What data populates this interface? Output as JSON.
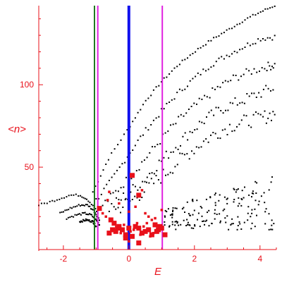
{
  "chart_data": {
    "type": "scatter",
    "title": "",
    "xlabel": "E",
    "ylabel": "<n>",
    "xlim": [
      -2.75,
      4.5
    ],
    "ylim": [
      0,
      148
    ],
    "x_ticks": [
      -2,
      0,
      2,
      4
    ],
    "y_ticks": [
      50,
      100
    ],
    "grid": false,
    "colors": {
      "axes": "#e8101a",
      "background_points": "#000000",
      "highlight_points": "#e8101a",
      "line_green": "#1f7a1f",
      "line_magenta": "#e020e0",
      "line_blue": "#1010ee"
    },
    "vertical_lines": [
      {
        "x": -1.05,
        "color": "#1f7a1f",
        "style": "thin"
      },
      {
        "x": -0.95,
        "color": "#e020e0",
        "style": "thin"
      },
      {
        "x": 0.0,
        "color": "#1010ee",
        "style": "thick"
      },
      {
        "x": 1.02,
        "color": "#e020e0",
        "style": "thin"
      }
    ],
    "band_series": [
      {
        "x": [
          -1.1,
          -0.6,
          0.0,
          0.5,
          1.0,
          1.5,
          2.0,
          2.5,
          3.0,
          3.5,
          4.0,
          4.45
        ],
        "y": [
          35,
          56,
          74,
          90,
          102,
          112,
          120,
          127,
          133,
          139,
          144,
          148
        ]
      },
      {
        "x": [
          -1.0,
          -0.5,
          0.0,
          0.5,
          1.0,
          1.5,
          2.0,
          2.5,
          3.0,
          3.5,
          4.0,
          4.45
        ],
        "y": [
          30,
          43,
          58,
          72,
          84,
          95,
          104,
          112,
          118,
          123,
          128,
          129
        ]
      },
      {
        "x": [
          -0.8,
          -0.3,
          0.2,
          0.7,
          1.2,
          1.7,
          2.2,
          2.7,
          3.2,
          3.7,
          4.2,
          4.45
        ],
        "y": [
          27,
          37,
          48,
          60,
          72,
          82,
          90,
          98,
          104,
          108,
          111,
          112
        ]
      },
      {
        "x": [
          -0.6,
          -0.1,
          0.4,
          0.9,
          1.4,
          1.9,
          2.4,
          2.9,
          3.4,
          3.9,
          4.4
        ],
        "y": [
          25,
          33,
          41,
          52,
          62,
          72,
          80,
          86,
          90,
          94,
          98
        ]
      },
      {
        "x": [
          -0.4,
          0.1,
          0.6,
          1.1,
          1.6,
          2.1,
          2.6,
          3.1,
          3.6,
          4.1,
          4.45
        ],
        "y": [
          24,
          30,
          38,
          46,
          55,
          63,
          70,
          75,
          78,
          80,
          83
        ]
      }
    ],
    "low_curve_series": [
      {
        "x": [
          -2.75,
          -2.4,
          -2.1,
          -1.8,
          -1.5,
          -1.3,
          -1.1,
          -0.95
        ],
        "y": [
          27,
          29,
          31,
          33,
          33,
          31,
          27,
          22
        ]
      },
      {
        "x": [
          -2.1,
          -1.8,
          -1.5,
          -1.25,
          -1.05,
          -0.9
        ],
        "y": [
          22,
          25,
          27,
          27,
          23,
          18
        ]
      },
      {
        "x": [
          -1.9,
          -1.6,
          -1.35,
          -1.15,
          -1.0,
          -0.9
        ],
        "y": [
          19,
          21,
          22,
          21,
          18,
          15
        ]
      },
      {
        "x": [
          -1.5,
          -1.3,
          -1.1,
          -1.0
        ],
        "y": [
          17,
          18,
          17,
          14
        ]
      }
    ],
    "scatter_region": {
      "x_range": [
        1.0,
        4.45
      ],
      "y_range": [
        12,
        45
      ],
      "count": 160
    },
    "red_points": {
      "x": [
        0.0,
        -0.2,
        0.2,
        0.4,
        0.6,
        -0.4,
        0.8,
        -0.1,
        0.1,
        0.3,
        0.5,
        0.7,
        -0.3,
        -0.5,
        -0.6,
        0.9,
        1.0,
        0.25,
        -0.15,
        0.05,
        0.35,
        0.45,
        -0.25,
        0.15,
        0.55,
        0.65,
        0.75,
        -0.35,
        -0.45,
        -0.55,
        0.85,
        0.95,
        1.1,
        -0.7,
        -0.8,
        0.2,
        0.0,
        -0.65,
        0.3,
        -0.3,
        0.6,
        -0.9,
        0.4,
        0.7,
        -0.6,
        0.1,
        0.5,
        0.8,
        0.0,
        -0.1,
        0.3,
        1.0
      ],
      "y": [
        13,
        12,
        14,
        10,
        12,
        11,
        15,
        9,
        8,
        13,
        11,
        9,
        14,
        12,
        10,
        12,
        13,
        16,
        15,
        11,
        9,
        14,
        10,
        12,
        16,
        8,
        10,
        13,
        16,
        18,
        11,
        14,
        9,
        20,
        22,
        26,
        23,
        30,
        33,
        28,
        20,
        25,
        36,
        18,
        35,
        45,
        22,
        19,
        5,
        7,
        4,
        24
      ],
      "big_indices": [
        0,
        1,
        2,
        3,
        4,
        5,
        6,
        7,
        8,
        9,
        10,
        11,
        12,
        13,
        14,
        15,
        16,
        27,
        28,
        29,
        30,
        31,
        32,
        38,
        41,
        45,
        49,
        50
      ]
    }
  }
}
